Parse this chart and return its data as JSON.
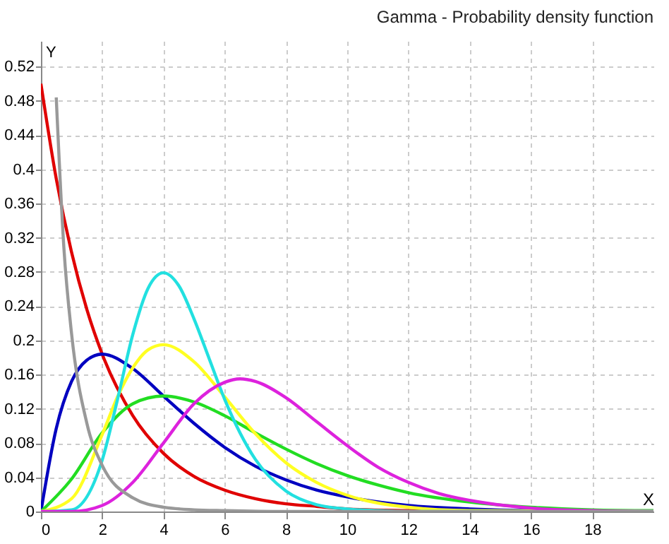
{
  "chart_data": {
    "type": "line",
    "title": "Gamma - Probability density function",
    "xlabel": "X",
    "ylabel": "Y",
    "xlim": [
      0,
      20
    ],
    "ylim": [
      0,
      0.55
    ],
    "xticks": [
      0,
      2,
      4,
      6,
      8,
      10,
      12,
      14,
      16,
      18
    ],
    "yticks": [
      0,
      0.04,
      0.08,
      0.12,
      0.16,
      0.2,
      0.24,
      0.28,
      0.32,
      0.36,
      0.4,
      0.44,
      0.48,
      0.52
    ],
    "grid": true,
    "legend": false,
    "marker": "none",
    "line_style": "solid",
    "series": [
      {
        "color": "#e00000",
        "x": [
          0,
          0.5,
          1,
          1.5,
          2,
          3,
          4,
          5,
          6,
          7,
          8,
          9,
          10,
          12,
          14,
          20
        ],
        "values": [
          0.5,
          0.389,
          0.303,
          0.236,
          0.184,
          0.112,
          0.068,
          0.041,
          0.025,
          0.015,
          0.009,
          0.006,
          0.003,
          0.001,
          0,
          0
        ]
      },
      {
        "color": "#0000c0",
        "x": [
          0,
          0.5,
          1,
          1.5,
          2,
          3,
          4,
          5,
          6,
          7,
          8,
          9,
          10,
          12,
          14,
          16,
          20
        ],
        "values": [
          0,
          0.097,
          0.152,
          0.177,
          0.184,
          0.167,
          0.135,
          0.103,
          0.075,
          0.053,
          0.037,
          0.025,
          0.017,
          0.007,
          0.003,
          0.001,
          0
        ]
      },
      {
        "color": "#22dd22",
        "x": [
          0,
          1,
          2,
          3,
          4,
          5,
          6,
          7,
          8,
          9,
          10,
          11,
          12,
          14,
          16,
          18,
          20
        ],
        "values": [
          0,
          0.038,
          0.092,
          0.126,
          0.135,
          0.128,
          0.112,
          0.092,
          0.073,
          0.056,
          0.042,
          0.031,
          0.022,
          0.011,
          0.005,
          0.002,
          0.001
        ]
      },
      {
        "color": "#ffff22",
        "x": [
          0,
          1,
          2,
          2.5,
          3,
          3.5,
          4,
          5,
          6,
          7,
          8,
          9,
          10,
          12,
          14,
          20
        ],
        "values": [
          0,
          0.015,
          0.09,
          0.134,
          0.168,
          0.189,
          0.195,
          0.175,
          0.134,
          0.091,
          0.057,
          0.034,
          0.019,
          0.005,
          0.001,
          0
        ]
      },
      {
        "color": "#22e0e0",
        "x": [
          0,
          1,
          2,
          2.5,
          3,
          3.5,
          4,
          4.5,
          5,
          5.5,
          6,
          7,
          8,
          9,
          10,
          11,
          12,
          20
        ],
        "values": [
          0,
          0.002,
          0.06,
          0.131,
          0.207,
          0.261,
          0.279,
          0.264,
          0.225,
          0.178,
          0.131,
          0.061,
          0.024,
          0.008,
          0.003,
          0.001,
          0,
          0
        ]
      },
      {
        "color": "#dd22dd",
        "x": [
          0,
          1,
          2,
          3,
          4,
          5,
          6,
          6.5,
          7,
          8,
          9,
          10,
          11,
          12,
          13,
          14,
          16,
          18,
          20
        ],
        "values": [
          0,
          0,
          0.007,
          0.034,
          0.08,
          0.126,
          0.151,
          0.155,
          0.152,
          0.133,
          0.105,
          0.077,
          0.052,
          0.034,
          0.021,
          0.013,
          0.004,
          0.001,
          0
        ]
      },
      {
        "color": "#999999",
        "x": [
          0.5,
          0.75,
          1,
          1.5,
          2,
          3,
          4,
          5,
          6,
          8,
          20
        ],
        "values": [
          0.484,
          0.308,
          0.208,
          0.103,
          0.054,
          0.016,
          0.005,
          0.002,
          0.001,
          0,
          0
        ]
      }
    ]
  }
}
